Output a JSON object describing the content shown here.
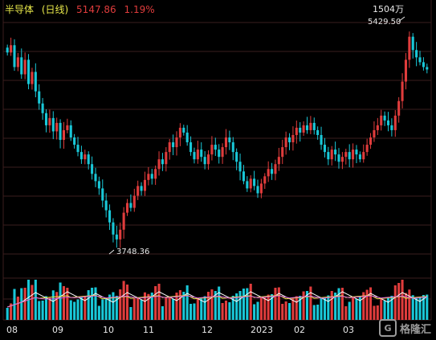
{
  "header": {
    "name": "半导体",
    "period": "(日线)",
    "price": "5147.86",
    "change": "1.19%"
  },
  "volume_label": "1504万",
  "logo": {
    "text": "格隆汇"
  },
  "colors": {
    "up": "#e03c3c",
    "down": "#19c8d8",
    "grid": "#3a1e1e",
    "label": "#e8e8e8",
    "ma5": "#ffffff",
    "ma10": "#e8e84a",
    "ma20": "#d65fd6"
  },
  "chart_data": {
    "type": "candlestick",
    "x_ticks": [
      "08",
      "09",
      "10",
      "11",
      "12",
      "2023",
      "02",
      "03"
    ],
    "price_range": [
      3600,
      5600
    ],
    "annotations": [
      {
        "label": "5429.50",
        "kind": "high"
      },
      {
        "label": "3748.36",
        "kind": "low"
      }
    ],
    "close_path": [
      5300,
      5360,
      5180,
      5260,
      5120,
      5240,
      5040,
      5140,
      4980,
      4880,
      4800,
      4700,
      4760,
      4650,
      4720,
      4580,
      4660,
      4700,
      4600,
      4540,
      4480,
      4420,
      4460,
      4380,
      4300,
      4240,
      4180,
      4080,
      4000,
      3900,
      3800,
      3760,
      3840,
      3980,
      4060,
      4020,
      4120,
      4200,
      4160,
      4250,
      4300,
      4260,
      4340,
      4420,
      4380,
      4480,
      4560,
      4520,
      4600,
      4680,
      4640,
      4560,
      4480,
      4420,
      4500,
      4440,
      4380,
      4460,
      4540,
      4500,
      4440,
      4520,
      4600,
      4560,
      4480,
      4400,
      4320,
      4240,
      4180,
      4260,
      4200,
      4140,
      4220,
      4280,
      4340,
      4300,
      4380,
      4440,
      4520,
      4600,
      4560,
      4620,
      4680,
      4640,
      4700,
      4660,
      4720,
      4660,
      4620,
      4540,
      4480,
      4420,
      4500,
      4460,
      4400,
      4440,
      4480,
      4420,
      4500,
      4460,
      4420,
      4480,
      4540,
      4600,
      4660,
      4700,
      4780,
      4740,
      4700,
      4660,
      4780,
      4900,
      5060,
      5240,
      5430,
      5320,
      5260,
      5220,
      5180,
      5160
    ]
  }
}
